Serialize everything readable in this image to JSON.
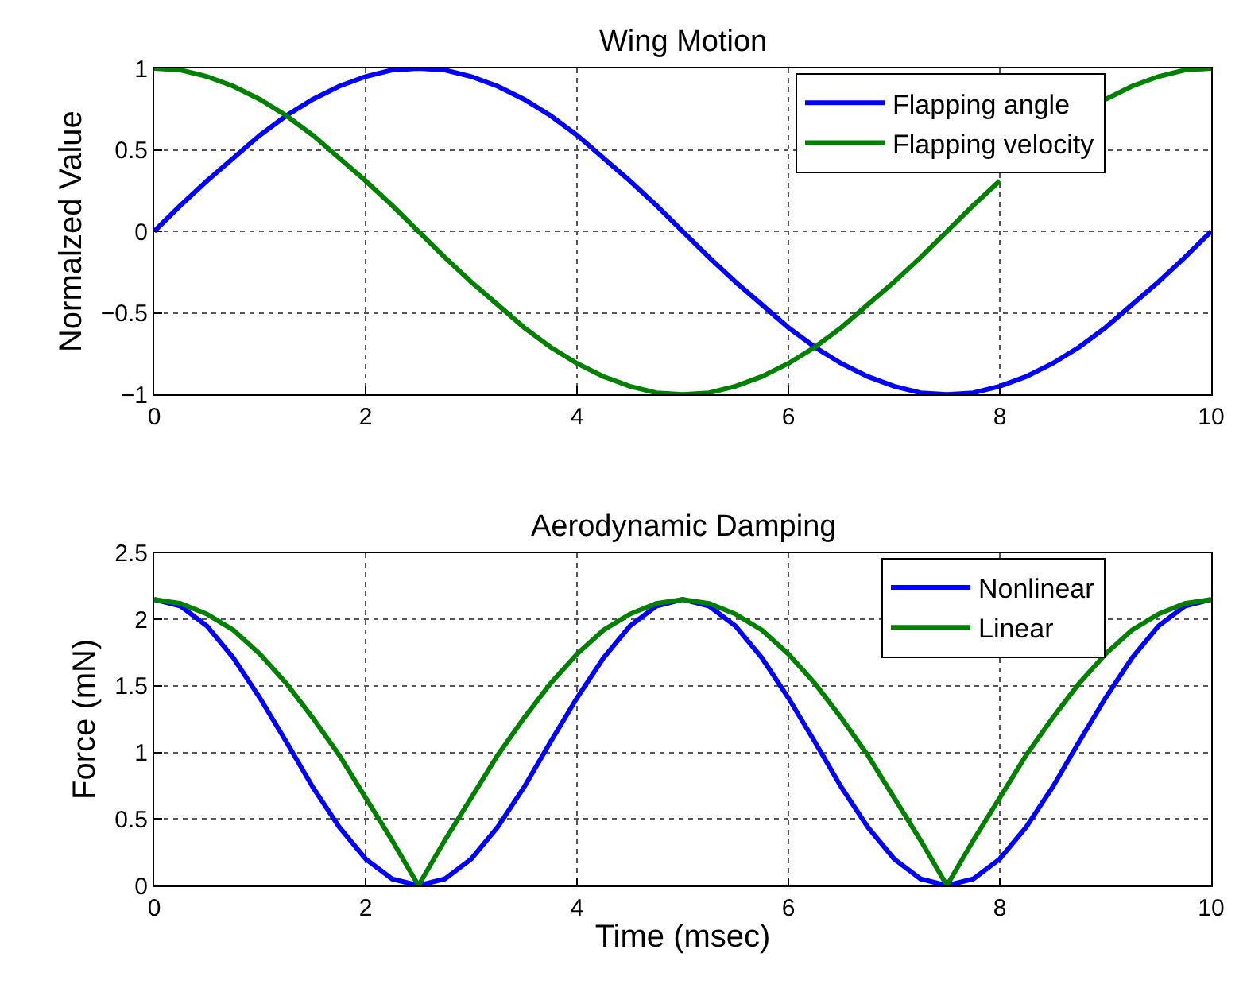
{
  "chart_data": [
    {
      "type": "line",
      "title": "Wing Motion",
      "ylabel": "Normalzed Value",
      "x": [
        0,
        0.25,
        0.5,
        0.75,
        1,
        1.25,
        1.5,
        1.75,
        2,
        2.25,
        2.5,
        2.75,
        3,
        3.25,
        3.5,
        3.75,
        4,
        4.25,
        4.5,
        4.75,
        5,
        5.25,
        5.5,
        5.75,
        6,
        6.25,
        6.5,
        6.75,
        7,
        7.25,
        7.5,
        7.75,
        8,
        8.25,
        8.5,
        8.75,
        9,
        9.25,
        9.5,
        9.75,
        10
      ],
      "series": [
        {
          "name": "Flapping angle",
          "color": "#0000ff",
          "values": [
            0,
            0.16,
            0.31,
            0.45,
            0.59,
            0.71,
            0.81,
            0.89,
            0.95,
            0.99,
            1,
            0.99,
            0.95,
            0.89,
            0.81,
            0.71,
            0.59,
            0.45,
            0.31,
            0.16,
            0,
            -0.16,
            -0.31,
            -0.45,
            -0.59,
            -0.71,
            -0.81,
            -0.89,
            -0.95,
            -0.99,
            -1,
            -0.99,
            -0.95,
            -0.89,
            -0.81,
            -0.71,
            -0.59,
            -0.45,
            -0.31,
            -0.16,
            0
          ]
        },
        {
          "name": "Flapping velocity",
          "color": "#008000",
          "values": [
            1,
            0.99,
            0.95,
            0.89,
            0.81,
            0.71,
            0.59,
            0.45,
            0.31,
            0.16,
            0,
            -0.16,
            -0.31,
            -0.45,
            -0.59,
            -0.71,
            -0.81,
            -0.89,
            -0.95,
            -0.99,
            -1,
            -0.99,
            -0.95,
            -0.89,
            -0.81,
            -0.71,
            -0.59,
            -0.45,
            -0.31,
            -0.16,
            0,
            0.16,
            0.31,
            null,
            null,
            null,
            0.81,
            0.89,
            0.95,
            0.99,
            1
          ]
        }
      ],
      "xlim": [
        0,
        10
      ],
      "xticks": [
        0,
        2,
        4,
        6,
        8,
        10
      ],
      "ylim": [
        -1,
        1
      ],
      "yticks": [
        {
          "value": -1,
          "label": "−1"
        },
        {
          "value": -0.5,
          "label": "−0.5"
        },
        0,
        0.5,
        1
      ],
      "grid": true,
      "legend": "top right",
      "line_style": "solid",
      "marker": "none"
    },
    {
      "type": "line",
      "title": "Aerodynamic Damping",
      "xlabel": "Time (msec)",
      "ylabel": "Force (mN)",
      "x": [
        0,
        0.25,
        0.5,
        0.75,
        1,
        1.25,
        1.5,
        1.75,
        2,
        2.25,
        2.5,
        2.75,
        3,
        3.25,
        3.5,
        3.75,
        4,
        4.25,
        4.5,
        4.75,
        5,
        5.25,
        5.5,
        5.75,
        6,
        6.25,
        6.5,
        6.75,
        7,
        7.25,
        7.5,
        7.75,
        8,
        8.25,
        8.5,
        8.75,
        9,
        9.25,
        9.5,
        9.75,
        10
      ],
      "series": [
        {
          "name": "Nonlinear",
          "color": "#0000ff",
          "values": [
            2.15,
            2.1,
            1.95,
            1.71,
            1.41,
            1.08,
            0.74,
            0.44,
            0.2,
            0.05,
            0,
            0.05,
            0.2,
            0.44,
            0.74,
            1.08,
            1.41,
            1.71,
            1.95,
            2.1,
            2.15,
            2.1,
            1.95,
            1.71,
            1.41,
            1.08,
            0.74,
            0.44,
            0.2,
            0.05,
            0,
            0.05,
            0.2,
            0.44,
            0.74,
            1.08,
            1.41,
            1.71,
            1.95,
            2.1,
            2.15
          ]
        },
        {
          "name": "Linear",
          "color": "#008000",
          "values": [
            2.15,
            2.12,
            2.04,
            1.92,
            1.74,
            1.52,
            1.26,
            0.98,
            0.66,
            0.34,
            0,
            0.34,
            0.66,
            0.98,
            1.26,
            1.52,
            1.74,
            1.92,
            2.04,
            2.12,
            2.15,
            2.12,
            2.04,
            1.92,
            1.74,
            1.52,
            1.26,
            0.98,
            0.66,
            0.34,
            0,
            0.34,
            0.66,
            0.98,
            1.26,
            1.52,
            1.74,
            1.92,
            2.04,
            2.12,
            2.15
          ]
        }
      ],
      "xlim": [
        0,
        10
      ],
      "xticks": [
        0,
        2,
        4,
        6,
        8,
        10
      ],
      "ylim": [
        0,
        2.5
      ],
      "yticks": [
        0,
        0.5,
        1,
        1.5,
        2,
        2.5
      ],
      "grid": true,
      "legend": "top right",
      "line_style": "solid",
      "marker": "none"
    }
  ]
}
